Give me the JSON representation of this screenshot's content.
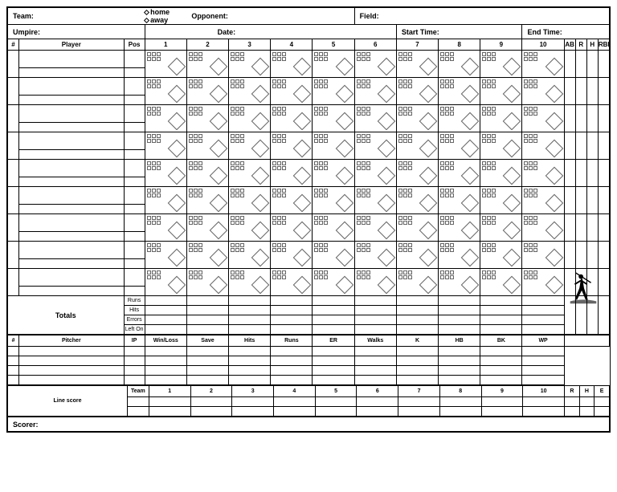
{
  "header": {
    "team": "Team:",
    "home": "home",
    "away": "away",
    "opponent": "Opponent:",
    "field": "Field:",
    "umpire": "Umpire:",
    "date": "Date:",
    "start_time": "Start Time:",
    "end_time": "End Time:"
  },
  "columns": {
    "num": "#",
    "player": "Player",
    "pos": "Pos",
    "innings": [
      "1",
      "2",
      "3",
      "4",
      "5",
      "6",
      "7",
      "8",
      "9",
      "10"
    ],
    "stats": [
      "AB",
      "R",
      "H",
      "RBI"
    ]
  },
  "player_rows": 9,
  "sub_rows_per_player": 1,
  "totals": {
    "label": "Totals",
    "rows": [
      "Runs",
      "Hits",
      "Errors",
      "Left On"
    ]
  },
  "pitcher_section": {
    "num": "#",
    "pitcher": "Pitcher",
    "headers": [
      "IP",
      "Win/Loss",
      "Save",
      "Hits",
      "Runs",
      "ER",
      "Walks",
      "K",
      "HB",
      "BK",
      "WP"
    ],
    "rows": 4
  },
  "line_score": {
    "label": "Line score",
    "team": "Team",
    "innings": [
      "1",
      "2",
      "3",
      "4",
      "5",
      "6",
      "7",
      "8",
      "9",
      "10"
    ],
    "stats": [
      "R",
      "H",
      "E"
    ]
  },
  "scorer": "Scorer:",
  "style": {
    "border_color": "#000000",
    "background": "#ffffff",
    "font_family": "Arial",
    "diamond_box_count": 6
  }
}
